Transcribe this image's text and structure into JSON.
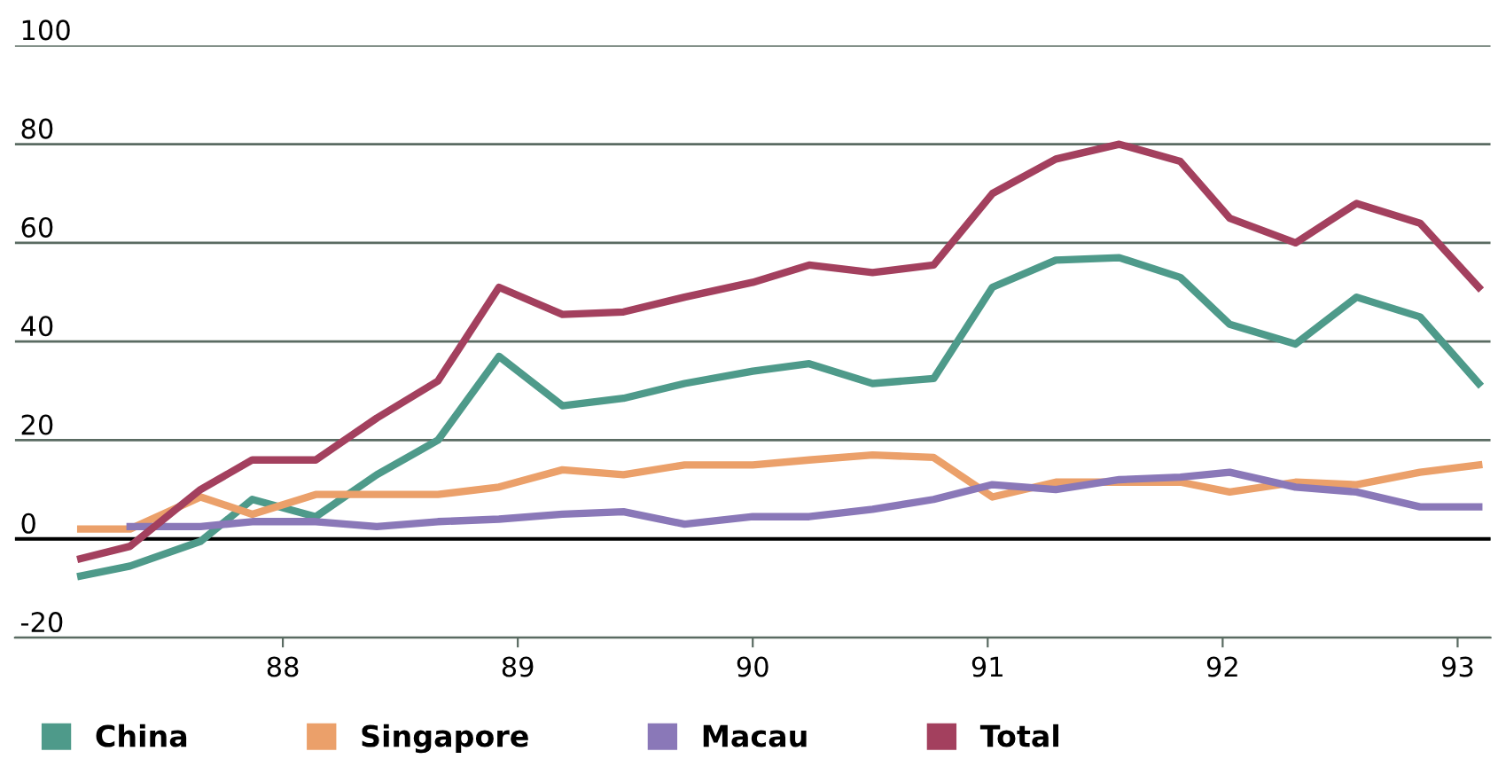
{
  "chart_data": {
    "type": "line",
    "x": [
      87.14,
      87.35,
      87.65,
      87.87,
      88.14,
      88.4,
      88.66,
      88.92,
      89.19,
      89.45,
      89.71,
      90.0,
      90.24,
      90.51,
      90.77,
      91.02,
      91.29,
      91.56,
      91.82,
      92.03,
      92.31,
      92.57,
      92.84,
      93.09
    ],
    "series": [
      {
        "name": "China",
        "color": "#4e9a8a",
        "values": [
          -7.5,
          -5.5,
          -0.5,
          8,
          4.5,
          13,
          20,
          37,
          27,
          28.5,
          31.5,
          34,
          35.5,
          31.5,
          32.5,
          51,
          56.5,
          57,
          53,
          43.5,
          39.5,
          49,
          45,
          31.5
        ]
      },
      {
        "name": "Singapore",
        "color": "#eba06a",
        "values": [
          2,
          2,
          8.5,
          5,
          9,
          9,
          9,
          10.5,
          14,
          13,
          15,
          15,
          16,
          17,
          16.5,
          8.5,
          11.5,
          11.5,
          11.5,
          9.5,
          11.5,
          11,
          13.5,
          15
        ]
      },
      {
        "name": "Macau",
        "color": "#8a78b8",
        "values": [
          null,
          2.5,
          2.5,
          3.5,
          3.5,
          2.5,
          3.5,
          4,
          5,
          5.5,
          3,
          4.5,
          4.5,
          6,
          8,
          11,
          10,
          12,
          12.5,
          13.5,
          10.5,
          9.5,
          6.5,
          6.5
        ]
      },
      {
        "name": "Total",
        "color": "#a3405e",
        "values": [
          -4,
          -1.5,
          10,
          16,
          16,
          24.5,
          32,
          51,
          45.5,
          46,
          49,
          52,
          55.5,
          54,
          55.5,
          70,
          77,
          80,
          76.5,
          65,
          60,
          68,
          64,
          51
        ]
      }
    ],
    "xlim": [
      86.86,
      93.14
    ],
    "xticks": [
      88,
      89,
      90,
      91,
      92,
      93
    ],
    "ylim": [
      -20,
      100
    ],
    "yticks": [
      -20,
      0,
      20,
      40,
      60,
      80,
      100
    ],
    "ref_lines": [
      {
        "axis": "y",
        "value": 0,
        "color": "#000000"
      }
    ],
    "grid": "y",
    "legend": "bottom",
    "marker": "none",
    "line_style": "solid"
  }
}
